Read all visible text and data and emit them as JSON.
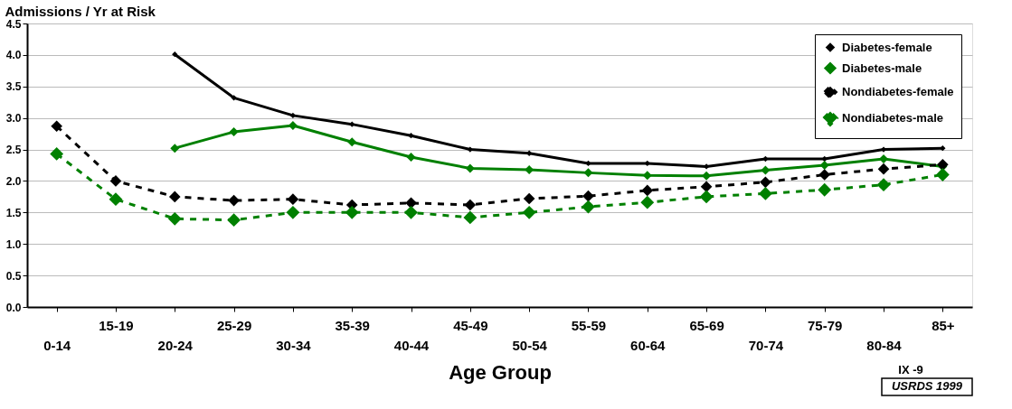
{
  "chart_data": {
    "type": "line",
    "ylabel": "Admissions / Yr at Risk",
    "xlabel": "Age Group",
    "categories": [
      "0-14",
      "15-19",
      "20-24",
      "25-29",
      "30-34",
      "35-39",
      "40-44",
      "45-49",
      "50-54",
      "55-59",
      "60-64",
      "65-69",
      "70-74",
      "75-79",
      "80-84",
      "85+"
    ],
    "series": [
      {
        "name": "Diabetes-female",
        "color": "#000000",
        "line_style": "solid",
        "values": [
          null,
          null,
          4.01,
          3.32,
          3.04,
          2.9,
          2.72,
          2.5,
          2.44,
          2.28,
          2.28,
          2.23,
          2.35,
          2.35,
          2.5,
          2.52
        ]
      },
      {
        "name": "Diabetes-male",
        "color": "#008000",
        "line_style": "solid",
        "values": [
          null,
          null,
          2.52,
          2.78,
          2.88,
          2.62,
          2.38,
          2.2,
          2.18,
          2.13,
          2.09,
          2.08,
          2.17,
          2.25,
          2.35,
          2.23
        ]
      },
      {
        "name": "Nondiabetes-female",
        "color": "#000000",
        "line_style": "dashed",
        "values": [
          2.87,
          2.0,
          1.75,
          1.69,
          1.71,
          1.62,
          1.65,
          1.62,
          1.72,
          1.76,
          1.85,
          1.91,
          1.98,
          2.1,
          2.19,
          2.26
        ]
      },
      {
        "name": "Nondiabetes-male",
        "color": "#008000",
        "line_style": "dashed",
        "values": [
          2.43,
          1.71,
          1.4,
          1.38,
          1.5,
          1.5,
          1.5,
          1.42,
          1.5,
          1.59,
          1.66,
          1.75,
          1.8,
          1.86,
          1.94,
          2.1
        ]
      }
    ],
    "ylim": [
      0,
      4.5
    ],
    "yticks": [
      {
        "value": 0,
        "label": "0.0"
      },
      {
        "value": 0.5,
        "label": "0.5"
      },
      {
        "value": 1,
        "label": "1.0"
      },
      {
        "value": 1.5,
        "label": "1.5"
      },
      {
        "value": 2,
        "label": "2.0"
      },
      {
        "value": 2.5,
        "label": "2.5"
      },
      {
        "value": 3,
        "label": "3.0"
      },
      {
        "value": 3.5,
        "label": "3.5"
      },
      {
        "value": 4,
        "label": "4.0"
      },
      {
        "value": 4.5,
        "label": "4.5"
      }
    ],
    "grid": "y",
    "legend": "top right",
    "marker": "diamond",
    "annotations": [
      "IX -9",
      "USRDS 1999"
    ]
  }
}
